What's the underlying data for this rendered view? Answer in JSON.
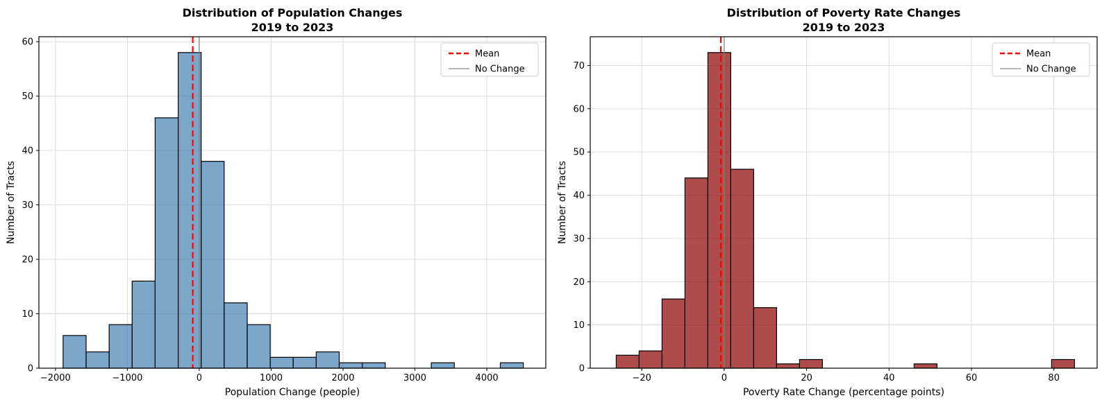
{
  "chart_data": [
    {
      "type": "histogram",
      "title": "Distribution of Population Changes",
      "subtitle": "2019 to 2023",
      "xlabel": "Population Change (people)",
      "ylabel": "Number of Tracts",
      "bin_start": -1893,
      "bin_width": 320,
      "counts": [
        6,
        3,
        8,
        16,
        46,
        58,
        38,
        12,
        8,
        2,
        2,
        3,
        1,
        1,
        0,
        0,
        1,
        0,
        0,
        1
      ],
      "mean": -90,
      "no_change": 0,
      "xlim": [
        -2230,
        4820
      ],
      "ylim": [
        0,
        60.9
      ],
      "x_ticks": [
        {
          "v": -2000,
          "label": "−2000"
        },
        {
          "v": -1000,
          "label": "−1000"
        },
        {
          "v": 0,
          "label": "0"
        },
        {
          "v": 1000,
          "label": "1000"
        },
        {
          "v": 2000,
          "label": "2000"
        },
        {
          "v": 3000,
          "label": "3000"
        },
        {
          "v": 4000,
          "label": "4000"
        }
      ],
      "y_ticks": [
        {
          "v": 0,
          "label": "0"
        },
        {
          "v": 10,
          "label": "10"
        },
        {
          "v": 20,
          "label": "20"
        },
        {
          "v": 30,
          "label": "30"
        },
        {
          "v": 40,
          "label": "40"
        },
        {
          "v": 50,
          "label": "50"
        },
        {
          "v": 60,
          "label": "60"
        }
      ],
      "grid": true,
      "grid_color": "#dcdcdc",
      "bar_color": "#4682B4",
      "bar_alpha": 0.7,
      "bar_edge_color": "#000000",
      "mean_line_color": "#ff0000",
      "no_change_line_color": "#808080",
      "legend_position": "upper right",
      "legend": [
        {
          "label": "Mean",
          "color": "#ff0000",
          "dashed": true
        },
        {
          "label": "No Change",
          "color": "#aaaaaa",
          "dashed": false
        }
      ]
    },
    {
      "type": "histogram",
      "title": "Distribution of Poverty Rate Changes",
      "subtitle": "2019 to 2023",
      "xlabel": "Poverty Rate Change (percentage points)",
      "ylabel": "Number of Tracts",
      "bin_start": -26.2,
      "bin_width": 5.56,
      "counts": [
        3,
        4,
        16,
        44,
        73,
        46,
        14,
        1,
        2,
        0,
        0,
        0,
        0,
        1,
        0,
        0,
        0,
        0,
        0,
        2
      ],
      "mean": -0.8,
      "no_change": 0,
      "xlim": [
        -32.5,
        90.5
      ],
      "ylim": [
        0,
        76.65
      ],
      "x_ticks": [
        {
          "v": -20,
          "label": "−20"
        },
        {
          "v": 0,
          "label": "0"
        },
        {
          "v": 20,
          "label": "20"
        },
        {
          "v": 40,
          "label": "40"
        },
        {
          "v": 60,
          "label": "60"
        },
        {
          "v": 80,
          "label": "80"
        }
      ],
      "y_ticks": [
        {
          "v": 0,
          "label": "0"
        },
        {
          "v": 10,
          "label": "10"
        },
        {
          "v": 20,
          "label": "20"
        },
        {
          "v": 30,
          "label": "30"
        },
        {
          "v": 40,
          "label": "40"
        },
        {
          "v": 50,
          "label": "50"
        },
        {
          "v": 60,
          "label": "60"
        },
        {
          "v": 70,
          "label": "70"
        }
      ],
      "grid": true,
      "grid_color": "#dcdcdc",
      "bar_color": "#8B0000",
      "bar_alpha": 0.7,
      "bar_edge_color": "#000000",
      "mean_line_color": "#ff0000",
      "no_change_line_color": "#808080",
      "legend_position": "upper right",
      "legend": [
        {
          "label": "Mean",
          "color": "#ff0000",
          "dashed": true
        },
        {
          "label": "No Change",
          "color": "#aaaaaa",
          "dashed": false
        }
      ]
    }
  ]
}
